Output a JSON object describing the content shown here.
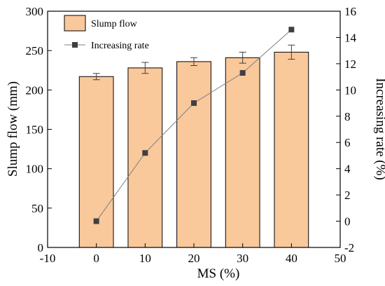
{
  "chart_data": {
    "type": "bar",
    "x_axis": {
      "label": "MS (%)",
      "range": [
        -10,
        50
      ],
      "ticks": [
        -10,
        0,
        10,
        20,
        30,
        40,
        50
      ]
    },
    "y_left": {
      "label": "Slump flow (mm)",
      "range": [
        0,
        300
      ],
      "ticks": [
        0,
        50,
        100,
        150,
        200,
        250,
        300
      ]
    },
    "y_right": {
      "label": "Increasing rate (%)",
      "range": [
        -2,
        16
      ],
      "ticks": [
        -2,
        0,
        2,
        4,
        6,
        8,
        10,
        12,
        14,
        16
      ]
    },
    "x": [
      0,
      10,
      20,
      30,
      40
    ],
    "series": [
      {
        "name": "Slump flow",
        "type": "bar",
        "axis": "left",
        "values": [
          217,
          228,
          236,
          241,
          248
        ],
        "errors": [
          4,
          7,
          5,
          7,
          9
        ],
        "color": "#f9c89b"
      },
      {
        "name": "Increasing rate",
        "type": "line",
        "axis": "right",
        "values": [
          0,
          5.2,
          9.0,
          11.3,
          14.6
        ],
        "color": "#404040",
        "line_color": "#808080",
        "marker": "square"
      }
    ],
    "legend": {
      "placement": "top-left"
    }
  }
}
